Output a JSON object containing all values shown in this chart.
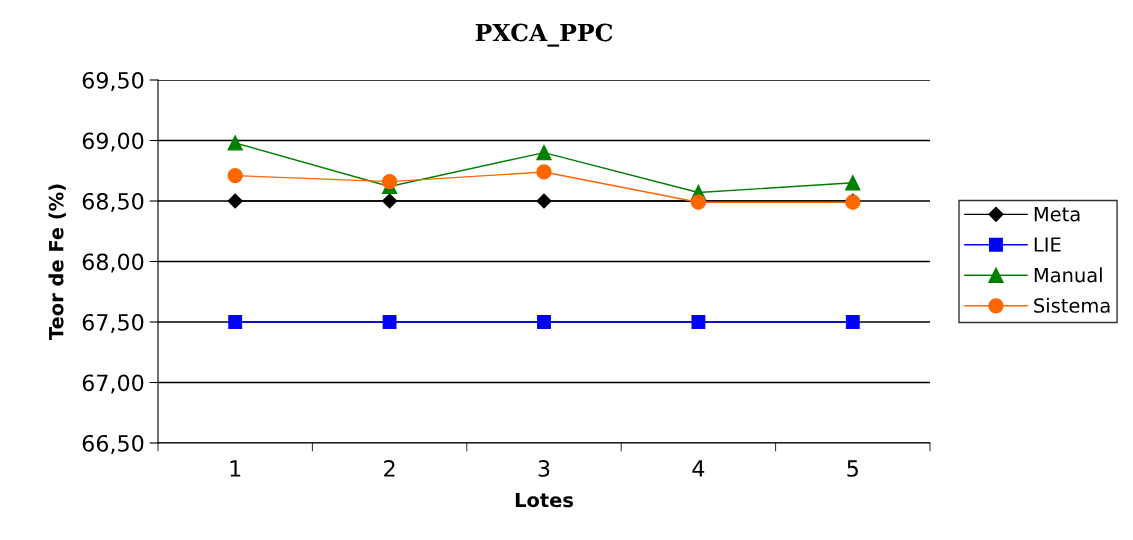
{
  "chart_data": {
    "type": "line",
    "title": "PXCA_PPC",
    "xlabel": "Lotes",
    "ylabel": "Teor de Fe (%)",
    "categories": [
      "1",
      "2",
      "3",
      "4",
      "5"
    ],
    "series": [
      {
        "name": "Meta",
        "color": "#000000",
        "marker": "diamond",
        "values": [
          68.5,
          68.5,
          68.5,
          68.5,
          68.5
        ]
      },
      {
        "name": "LIE",
        "color": "#0000ff",
        "marker": "square",
        "values": [
          67.5,
          67.5,
          67.5,
          67.5,
          67.5
        ]
      },
      {
        "name": "Manual",
        "color": "#008000",
        "marker": "triangle",
        "values": [
          68.98,
          68.62,
          68.9,
          68.57,
          68.65
        ]
      },
      {
        "name": "Sistema",
        "color": "#ff6600",
        "marker": "circle",
        "values": [
          68.71,
          68.66,
          68.74,
          68.49,
          68.49
        ]
      }
    ],
    "ylim": [
      66.5,
      69.5
    ],
    "yticks": [
      {
        "value": 66.5,
        "label": "66,50"
      },
      {
        "value": 67.0,
        "label": "67,00"
      },
      {
        "value": 67.5,
        "label": "67,50"
      },
      {
        "value": 68.0,
        "label": "68,00"
      },
      {
        "value": 68.5,
        "label": "68,50"
      },
      {
        "value": 69.0,
        "label": "69,00"
      },
      {
        "value": 69.5,
        "label": "69,50"
      }
    ],
    "grid": "y",
    "legend": "right",
    "line_style": "solid"
  }
}
